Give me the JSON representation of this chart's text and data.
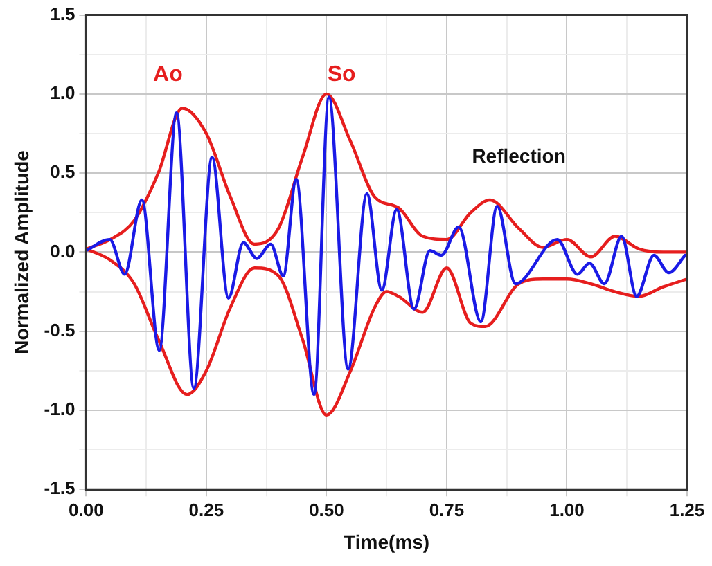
{
  "chart_data": {
    "type": "line",
    "xlabel": "Time(ms)",
    "ylabel": "Normalized Amplitude",
    "xlim": [
      0,
      1.25
    ],
    "ylim": [
      -1.5,
      1.5
    ],
    "xticks": [
      {
        "value": 0,
        "label": "0.00"
      },
      {
        "value": 0.125,
        "label": null
      },
      {
        "value": 0.25,
        "label": "0.25"
      },
      {
        "value": 0.375,
        "label": null
      },
      {
        "value": 0.5,
        "label": "0.50"
      },
      {
        "value": 0.625,
        "label": null
      },
      {
        "value": 0.75,
        "label": "0.75"
      },
      {
        "value": 0.875,
        "label": null
      },
      {
        "value": 1,
        "label": "1.00"
      },
      {
        "value": 1.125,
        "label": null
      },
      {
        "value": 1.25,
        "label": "1.25"
      }
    ],
    "yticks": [
      {
        "value": -1.5,
        "label": "-1.5"
      },
      {
        "value": -1.25,
        "label": null
      },
      {
        "value": -1,
        "label": "-1.0"
      },
      {
        "value": -0.75,
        "label": null
      },
      {
        "value": -0.5,
        "label": "-0.5"
      },
      {
        "value": -0.25,
        "label": null
      },
      {
        "value": 0,
        "label": "0.0"
      },
      {
        "value": 0.25,
        "label": null
      },
      {
        "value": 0.5,
        "label": "0.5"
      },
      {
        "value": 0.75,
        "label": null
      },
      {
        "value": 1,
        "label": "1.0"
      },
      {
        "value": 1.25,
        "label": null
      },
      {
        "value": 1.5,
        "label": "1.5"
      }
    ],
    "grid": true,
    "marker": "none",
    "line_style": "solid",
    "series": [
      {
        "color": "#1a1ae6",
        "x": [
          0,
          0.049,
          0.08,
          0.116,
          0.152,
          0.188,
          0.224,
          0.262,
          0.296,
          0.327,
          0.355,
          0.384,
          0.41,
          0.437,
          0.474,
          0.505,
          0.545,
          0.584,
          0.615,
          0.646,
          0.682,
          0.715,
          0.739,
          0.775,
          0.821,
          0.855,
          0.893,
          0.98,
          1.022,
          1.047,
          1.078,
          1.114,
          1.145,
          1.181,
          1.212,
          1.246
        ],
        "values": [
          0.01,
          0.08,
          -0.14,
          0.33,
          -0.62,
          0.88,
          -0.86,
          0.6,
          -0.29,
          0.06,
          -0.04,
          0.05,
          -0.15,
          0.46,
          -0.9,
          0.98,
          -0.74,
          0.37,
          -0.24,
          0.27,
          -0.36,
          0.01,
          -0.02,
          0.16,
          -0.44,
          0.29,
          -0.2,
          0.08,
          -0.14,
          -0.07,
          -0.2,
          0.1,
          -0.28,
          -0.02,
          -0.13,
          -0.02
        ]
      },
      {
        "color": "#e61e1e",
        "x": [
          0,
          0.05,
          0.1,
          0.15,
          0.2,
          0.25,
          0.3,
          0.35,
          0.4,
          0.45,
          0.5,
          0.55,
          0.6,
          0.65,
          0.7,
          0.75,
          0.8,
          0.84,
          0.9,
          0.95,
          1,
          1.05,
          1.1,
          1.15,
          1.2,
          1.25
        ],
        "values": [
          0.02,
          0.08,
          0.2,
          0.5,
          0.91,
          0.75,
          0.35,
          0.05,
          0.15,
          0.6,
          1,
          0.7,
          0.35,
          0.28,
          0.1,
          0.08,
          0.25,
          0.33,
          0.15,
          0.03,
          0.08,
          -0.03,
          0.1,
          0.02,
          0,
          0
        ]
      },
      {
        "color": "#e61e1e",
        "x": [
          0,
          0.05,
          0.1,
          0.15,
          0.21,
          0.25,
          0.3,
          0.35,
          0.4,
          0.45,
          0.5,
          0.55,
          0.6,
          0.625,
          0.65,
          0.7,
          0.75,
          0.8,
          0.83,
          0.9,
          0.95,
          1,
          1.05,
          1.1,
          1.15,
          1.2,
          1.25
        ],
        "values": [
          0.02,
          -0.05,
          -0.2,
          -0.55,
          -0.9,
          -0.75,
          -0.35,
          -0.1,
          -0.15,
          -0.55,
          -1.03,
          -0.75,
          -0.35,
          -0.25,
          -0.28,
          -0.38,
          -0.1,
          -0.45,
          -0.47,
          -0.2,
          -0.17,
          -0.17,
          -0.2,
          -0.25,
          -0.28,
          -0.22,
          -0.17
        ]
      }
    ],
    "annotations": [
      "Ao",
      "So",
      "Reflection"
    ]
  }
}
